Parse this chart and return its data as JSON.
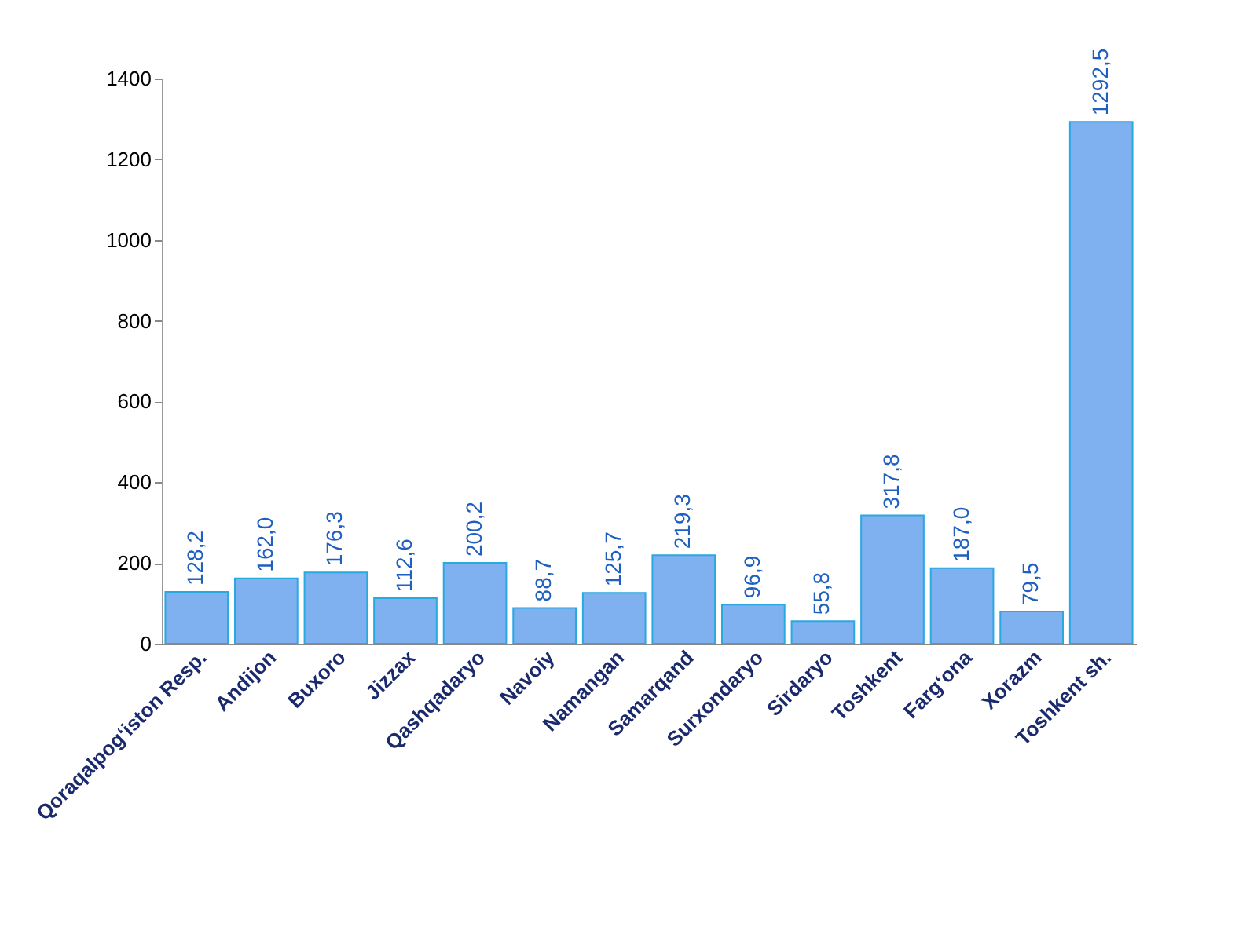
{
  "chart_data": {
    "type": "bar",
    "categories": [
      "Qoraqalpog‘iston Resp.",
      "Andijon",
      "Buxoro",
      "Jizzax",
      "Qashqadaryo",
      "Navoiy",
      "Namangan",
      "Samarqand",
      "Surxondaryo",
      "Sirdaryo",
      "Toshkent",
      "Farg‘ona",
      "Xorazm",
      "Toshkent sh."
    ],
    "values": [
      128.2,
      162.0,
      176.3,
      112.6,
      200.2,
      88.7,
      125.7,
      219.3,
      96.9,
      55.8,
      317.8,
      187.0,
      79.5,
      1292.5
    ],
    "value_labels": [
      "128,2",
      "162,0",
      "176,3",
      "112,6",
      "200,2",
      "88,7",
      "125,7",
      "219,3",
      "96,9",
      "55,8",
      "317,8",
      "187,0",
      "79,5",
      "1292,5"
    ],
    "color": "#7fb0f0",
    "ylim": [
      0,
      1400
    ],
    "yticks": [
      0,
      200,
      400,
      600,
      800,
      1000,
      1200,
      1400
    ],
    "grid": false
  }
}
